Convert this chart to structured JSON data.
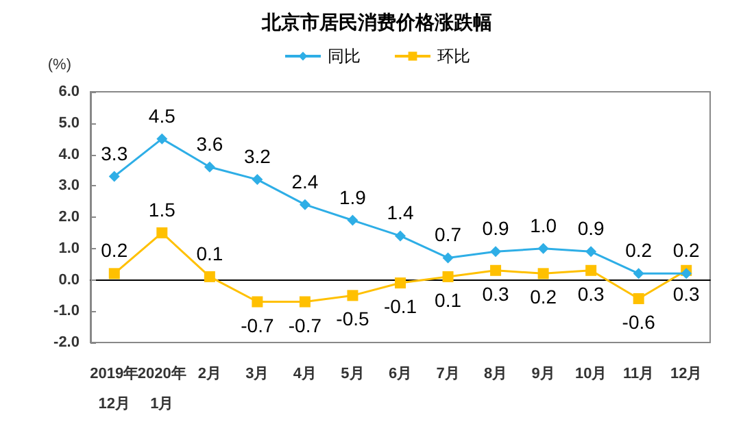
{
  "chart_data": {
    "type": "line",
    "title": "北京市居民消费价格涨跌幅",
    "ylabel": "(%)",
    "categories": [
      "2019年\n12月",
      "2020年\n1月",
      "2月",
      "3月",
      "4月",
      "5月",
      "6月",
      "7月",
      "8月",
      "9月",
      "10月",
      "11月",
      "12月"
    ],
    "series": [
      {
        "name": "同比",
        "color": "#2eaee6",
        "marker": "diamond",
        "values": [
          3.3,
          4.5,
          3.6,
          3.2,
          2.4,
          1.9,
          1.4,
          0.7,
          0.9,
          1.0,
          0.9,
          0.2,
          0.2
        ],
        "value_labels": [
          "3.3",
          "4.5",
          "3.6",
          "3.2",
          "2.4",
          "1.9",
          "1.4",
          "0.7",
          "0.9",
          "1.0",
          "0.9",
          "0.2",
          "0.2"
        ]
      },
      {
        "name": "环比",
        "color": "#ffc000",
        "marker": "square",
        "values": [
          0.2,
          1.5,
          0.1,
          -0.7,
          -0.7,
          -0.5,
          -0.1,
          0.1,
          0.3,
          0.2,
          0.3,
          -0.6,
          0.3
        ],
        "value_labels": [
          "0.2",
          "1.5",
          "0.1",
          "-0.7",
          "-0.7",
          "-0.5",
          "-0.1",
          "0.1",
          "0.3",
          "0.2",
          "0.3",
          "-0.6",
          "0.3"
        ]
      }
    ],
    "ylim": [
      -2,
      6
    ],
    "yticks": [
      {
        "value": -2,
        "label": "-2.0"
      },
      {
        "value": -1,
        "label": "-1.0"
      },
      {
        "value": 0,
        "label": "0.0"
      },
      {
        "value": 1,
        "label": "1.0"
      },
      {
        "value": 2,
        "label": "2.0"
      },
      {
        "value": 3,
        "label": "3.0"
      },
      {
        "value": 4,
        "label": "4.0"
      },
      {
        "value": 5,
        "label": "5.0"
      },
      {
        "value": 6,
        "label": "6.0"
      }
    ],
    "legend": "top"
  }
}
